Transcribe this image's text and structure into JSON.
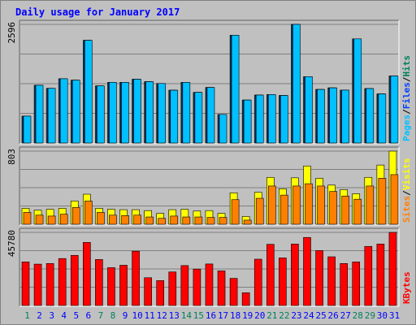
{
  "chart_data": {
    "type": "bar",
    "title": "Daily usage for January 2017",
    "colors": {
      "background": "#c0c0c0",
      "hits": "#00805c",
      "files": "#0040ff",
      "pages": "#00c0ff",
      "visits": "#ffff00",
      "sites": "#ff8000",
      "kbytes": "#ff0000",
      "title": "#0000ff",
      "weekend_label": "#00805c",
      "weekday_label": "#0000ff",
      "grid": "#808080"
    },
    "days": [
      "1",
      "2",
      "3",
      "4",
      "5",
      "6",
      "7",
      "8",
      "9",
      "10",
      "11",
      "12",
      "13",
      "14",
      "15",
      "16",
      "17",
      "18",
      "19",
      "20",
      "21",
      "22",
      "23",
      "24",
      "25",
      "26",
      "27",
      "28",
      "29",
      "30",
      "31"
    ],
    "weekend_days": [
      1,
      7,
      8,
      14,
      15,
      21,
      22,
      28,
      29
    ],
    "panels": [
      {
        "name": "hits-files-pages",
        "max_label": "2596",
        "ymax": 2596,
        "legend": [
          {
            "text": "Pages",
            "color": "#00c0ff"
          },
          {
            "text": "/",
            "color": "#000000"
          },
          {
            "text": "Files",
            "color": "#0040ff"
          },
          {
            "text": "/",
            "color": "#000000"
          },
          {
            "text": "Hits",
            "color": "#00805c"
          }
        ],
        "series": [
          {
            "name": "Hits",
            "color": "#00805c",
            "values": [
              588,
              1263,
              1196,
              1406,
              1375,
              2247,
              1250,
              1327,
              1327,
              1396,
              1342,
              1302,
              1155,
              1327,
              1108,
              1215,
              625,
              2359,
              940,
              1049,
              1060,
              1040,
              2596,
              1452,
              1172,
              1207,
              1157,
              2279,
              1191,
              1074,
              1467
            ]
          },
          {
            "name": "Files",
            "color": "#0040ff",
            "values": [
              588,
              1263,
              1196,
              1406,
              1375,
              2247,
              1250,
              1327,
              1327,
              1396,
              1342,
              1302,
              1155,
              1327,
              1108,
              1215,
              625,
              2359,
              940,
              1049,
              1060,
              1040,
              2596,
              1452,
              1172,
              1207,
              1157,
              2279,
              1191,
              1074,
              1467
            ]
          },
          {
            "name": "Pages",
            "color": "#00c0ff",
            "values": [
              588,
              1263,
              1196,
              1406,
              1375,
              2247,
              1250,
              1327,
              1327,
              1396,
              1342,
              1302,
              1155,
              1327,
              1108,
              1215,
              625,
              2359,
              940,
              1049,
              1060,
              1040,
              2596,
              1452,
              1172,
              1207,
              1157,
              2279,
              1191,
              1074,
              1467
            ]
          }
        ]
      },
      {
        "name": "visits-sites",
        "max_label": "803",
        "ymax": 803,
        "legend": [
          {
            "text": "Sites",
            "color": "#ff8000"
          },
          {
            "text": "/",
            "color": "#000000"
          },
          {
            "text": "Visits",
            "color": "#ffff00"
          }
        ],
        "series": [
          {
            "name": "Visits",
            "color": "#ffff00",
            "values": [
              175,
              155,
              165,
              175,
              255,
              330,
              175,
              165,
              160,
              160,
              150,
              120,
              160,
              165,
              145,
              150,
              120,
              345,
              85,
              350,
              515,
              390,
              510,
              640,
              505,
              430,
              380,
              335,
              515,
              650,
              803
            ]
          },
          {
            "name": "Sites",
            "color": "#ff8000",
            "values": [
              130,
              100,
              90,
              110,
              185,
              255,
              130,
              100,
              95,
              100,
              80,
              65,
              90,
              80,
              80,
              75,
              75,
              270,
              45,
              285,
              420,
              320,
              420,
              445,
              420,
              360,
              310,
              275,
              420,
              505,
              545
            ]
          }
        ]
      },
      {
        "name": "kbytes",
        "max_label": "45780",
        "ymax": 45780,
        "legend": [
          {
            "text": "KBytes",
            "color": "#ff0000"
          }
        ],
        "series": [
          {
            "name": "KBytes",
            "color": "#ff0000",
            "values": [
              27300,
              25900,
              26300,
              29400,
              31400,
              39500,
              28800,
              23700,
              25200,
              34000,
              17400,
              15600,
              21000,
              25000,
              22800,
              26000,
              21700,
              17000,
              8000,
              29000,
              38300,
              29800,
              38500,
              42600,
              34400,
              30500,
              26300,
              27300,
              37000,
              38500,
              45780
            ]
          }
        ]
      }
    ]
  }
}
